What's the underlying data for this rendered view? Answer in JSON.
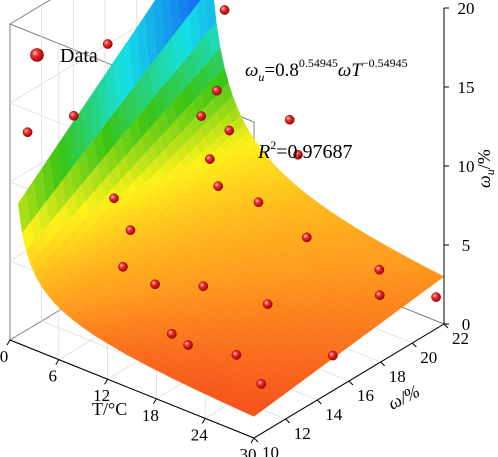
{
  "chart_data": {
    "type": "surface3d",
    "title": "",
    "legend": {
      "label": "Data",
      "placement": "top-left",
      "marker_color": "#e41a1c"
    },
    "equation": {
      "lhs": "ω",
      "lhs_sub": "u",
      "coef": "=0.8",
      "exp1": "0.54945",
      "mid": "ωT",
      "exp2": "−0.54945"
    },
    "r_squared": {
      "label": "R",
      "sup": "2",
      "value": "=0.97687"
    },
    "model": {
      "a": 0.8,
      "b": 0.54945,
      "c": -0.54945
    },
    "axes": {
      "T": {
        "label": "T/°C",
        "range": [
          0,
          30
        ],
        "ticks": [
          "0",
          "6",
          "12",
          "18",
          "24",
          "30"
        ]
      },
      "w": {
        "label": "ω/%",
        "range": [
          10,
          22
        ],
        "ticks": [
          "10",
          "12",
          "14",
          "16",
          "18",
          "20",
          "22"
        ]
      },
      "z": {
        "label": "ωu/%",
        "label_main": "ω",
        "label_sub": "u",
        "label_unit": "/%",
        "range": [
          0,
          20
        ],
        "ticks": [
          "0",
          "5",
          "10",
          "15",
          "20"
        ]
      }
    },
    "grid": true,
    "colorscale": [
      [
        0.0,
        "#ee1a1a"
      ],
      [
        0.16,
        "#ff9b1e"
      ],
      [
        0.34,
        "#fff21a"
      ],
      [
        0.5,
        "#39c414"
      ],
      [
        0.66,
        "#15e0e6"
      ],
      [
        0.82,
        "#1478ee"
      ],
      [
        1.0,
        "#1212d2"
      ]
    ],
    "points": [
      {
        "T": 1.0,
        "w": 18.2,
        "z": 19.6
      },
      {
        "T": 1.5,
        "w": 15.4,
        "z": 15.8
      },
      {
        "T": 2.0,
        "w": 13.0,
        "z": 12.8
      },
      {
        "T": 1.0,
        "w": 10.6,
        "z": 13.0
      },
      {
        "T": 4.0,
        "w": 21.5,
        "z": 14.8
      },
      {
        "T": 5.0,
        "w": 20.5,
        "z": 10.5
      },
      {
        "T": 6.0,
        "w": 19.0,
        "z": 10.0
      },
      {
        "T": 5.0,
        "w": 14.0,
        "z": 7.6
      },
      {
        "T": 7.5,
        "w": 20.0,
        "z": 8.8
      },
      {
        "T": 9.0,
        "w": 18.0,
        "z": 8.5
      },
      {
        "T": 11.0,
        "w": 17.5,
        "z": 7.5
      },
      {
        "T": 8.0,
        "w": 13.5,
        "z": 6.5
      },
      {
        "T": 10.0,
        "w": 12.0,
        "z": 5.5
      },
      {
        "T": 12.0,
        "w": 21.5,
        "z": 9.5
      },
      {
        "T": 14.0,
        "w": 21.0,
        "z": 8.0
      },
      {
        "T": 14.0,
        "w": 18.5,
        "z": 6.5
      },
      {
        "T": 12.0,
        "w": 13.0,
        "z": 4.2
      },
      {
        "T": 15.0,
        "w": 14.5,
        "z": 3.8
      },
      {
        "T": 16.0,
        "w": 12.0,
        "z": 2.5
      },
      {
        "T": 18.0,
        "w": 19.5,
        "z": 4.5
      },
      {
        "T": 18.0,
        "w": 12.0,
        "z": 2.2
      },
      {
        "T": 20.0,
        "w": 16.0,
        "z": 2.8
      },
      {
        "T": 24.0,
        "w": 21.0,
        "z": 2.8
      },
      {
        "T": 22.0,
        "w": 13.0,
        "z": 1.8
      },
      {
        "T": 26.0,
        "w": 20.0,
        "z": 2.2
      },
      {
        "T": 30.0,
        "w": 21.5,
        "z": 2.0
      },
      {
        "T": 27.0,
        "w": 12.0,
        "z": 1.6
      },
      {
        "T": 29.0,
        "w": 15.5,
        "z": 1.7
      }
    ]
  }
}
